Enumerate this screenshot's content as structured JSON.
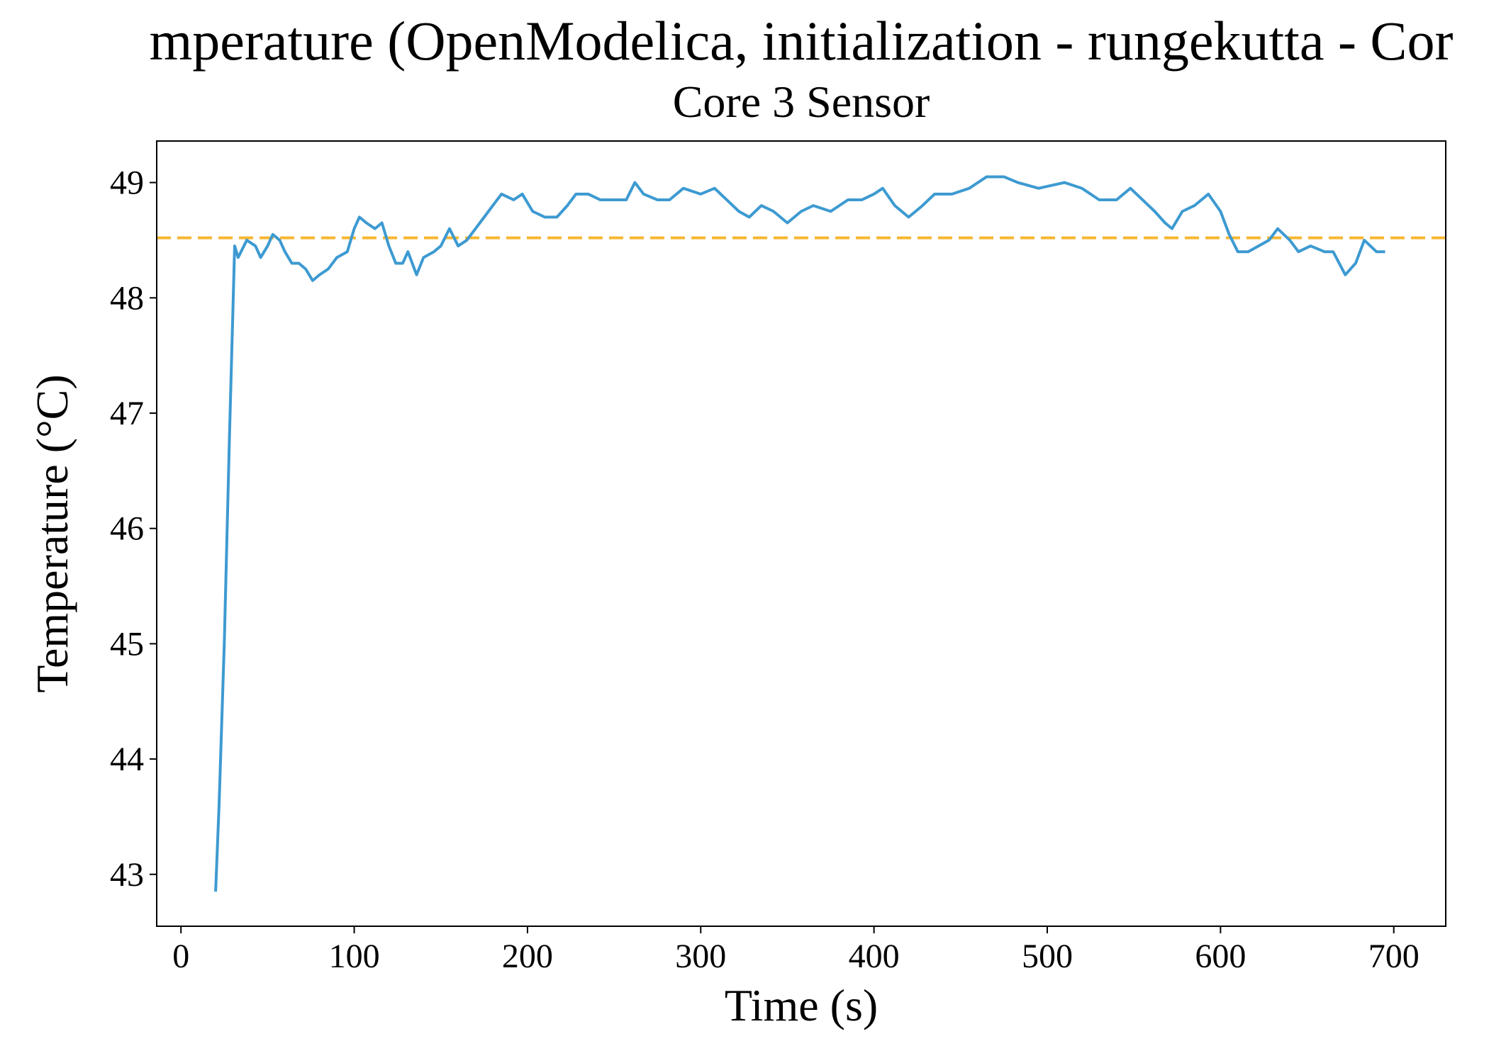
{
  "chart_data": {
    "type": "line",
    "title": "mperature (OpenModelica, initialization - rungekutta - Cor",
    "subtitle": "Core 3 Sensor",
    "x_label": "Time (s)",
    "y_label": "Temperature (°C)",
    "color": "#3d9ad1",
    "hline": {
      "value": 48.52,
      "color": "#f7b733",
      "dashed": true
    },
    "xlim": [
      -14,
      730
    ],
    "ylim": [
      42.55,
      49.36
    ],
    "xticks": [
      0,
      100,
      200,
      300,
      400,
      500,
      600,
      700
    ],
    "yticks": [
      43,
      44,
      45,
      46,
      47,
      48,
      49
    ],
    "grid": false,
    "x": [
      20,
      22,
      25,
      28,
      31,
      33,
      38,
      43,
      46,
      50,
      53,
      57,
      60,
      64,
      68,
      72,
      76,
      80,
      85,
      90,
      96,
      100,
      103,
      107,
      112,
      116,
      120,
      124,
      128,
      131,
      136,
      140,
      146,
      150,
      155,
      160,
      165,
      170,
      175,
      180,
      185,
      192,
      197,
      203,
      210,
      217,
      223,
      228,
      235,
      242,
      250,
      257,
      262,
      267,
      275,
      282,
      290,
      300,
      308,
      315,
      322,
      328,
      335,
      342,
      350,
      358,
      365,
      375,
      385,
      393,
      400,
      405,
      412,
      420,
      428,
      435,
      445,
      455,
      465,
      475,
      483,
      495,
      510,
      520,
      530,
      540,
      548,
      555,
      562,
      568,
      572,
      578,
      585,
      593,
      600,
      605,
      610,
      616,
      622,
      628,
      633,
      640,
      645,
      652,
      660,
      665,
      672,
      678,
      683,
      690,
      695
    ],
    "values": [
      42.85,
      43.6,
      45.0,
      46.8,
      48.45,
      48.35,
      48.5,
      48.45,
      48.35,
      48.45,
      48.55,
      48.5,
      48.4,
      48.3,
      48.3,
      48.25,
      48.15,
      48.2,
      48.25,
      48.35,
      48.4,
      48.6,
      48.7,
      48.65,
      48.6,
      48.65,
      48.45,
      48.3,
      48.3,
      48.4,
      48.2,
      48.35,
      48.4,
      48.45,
      48.6,
      48.45,
      48.5,
      48.6,
      48.7,
      48.8,
      48.9,
      48.85,
      48.9,
      48.75,
      48.7,
      48.7,
      48.8,
      48.9,
      48.9,
      48.85,
      48.85,
      48.85,
      49.0,
      48.9,
      48.85,
      48.85,
      48.95,
      48.9,
      48.95,
      48.85,
      48.75,
      48.7,
      48.8,
      48.75,
      48.65,
      48.75,
      48.8,
      48.75,
      48.85,
      48.85,
      48.9,
      48.95,
      48.8,
      48.7,
      48.8,
      48.9,
      48.9,
      48.95,
      49.05,
      49.05,
      49.0,
      48.95,
      49.0,
      48.95,
      48.85,
      48.85,
      48.95,
      48.85,
      48.75,
      48.65,
      48.6,
      48.75,
      48.8,
      48.9,
      48.75,
      48.55,
      48.4,
      48.4,
      48.45,
      48.5,
      48.6,
      48.5,
      48.4,
      48.45,
      48.4,
      48.4,
      48.2,
      48.3,
      48.5,
      48.4,
      48.4
    ]
  }
}
